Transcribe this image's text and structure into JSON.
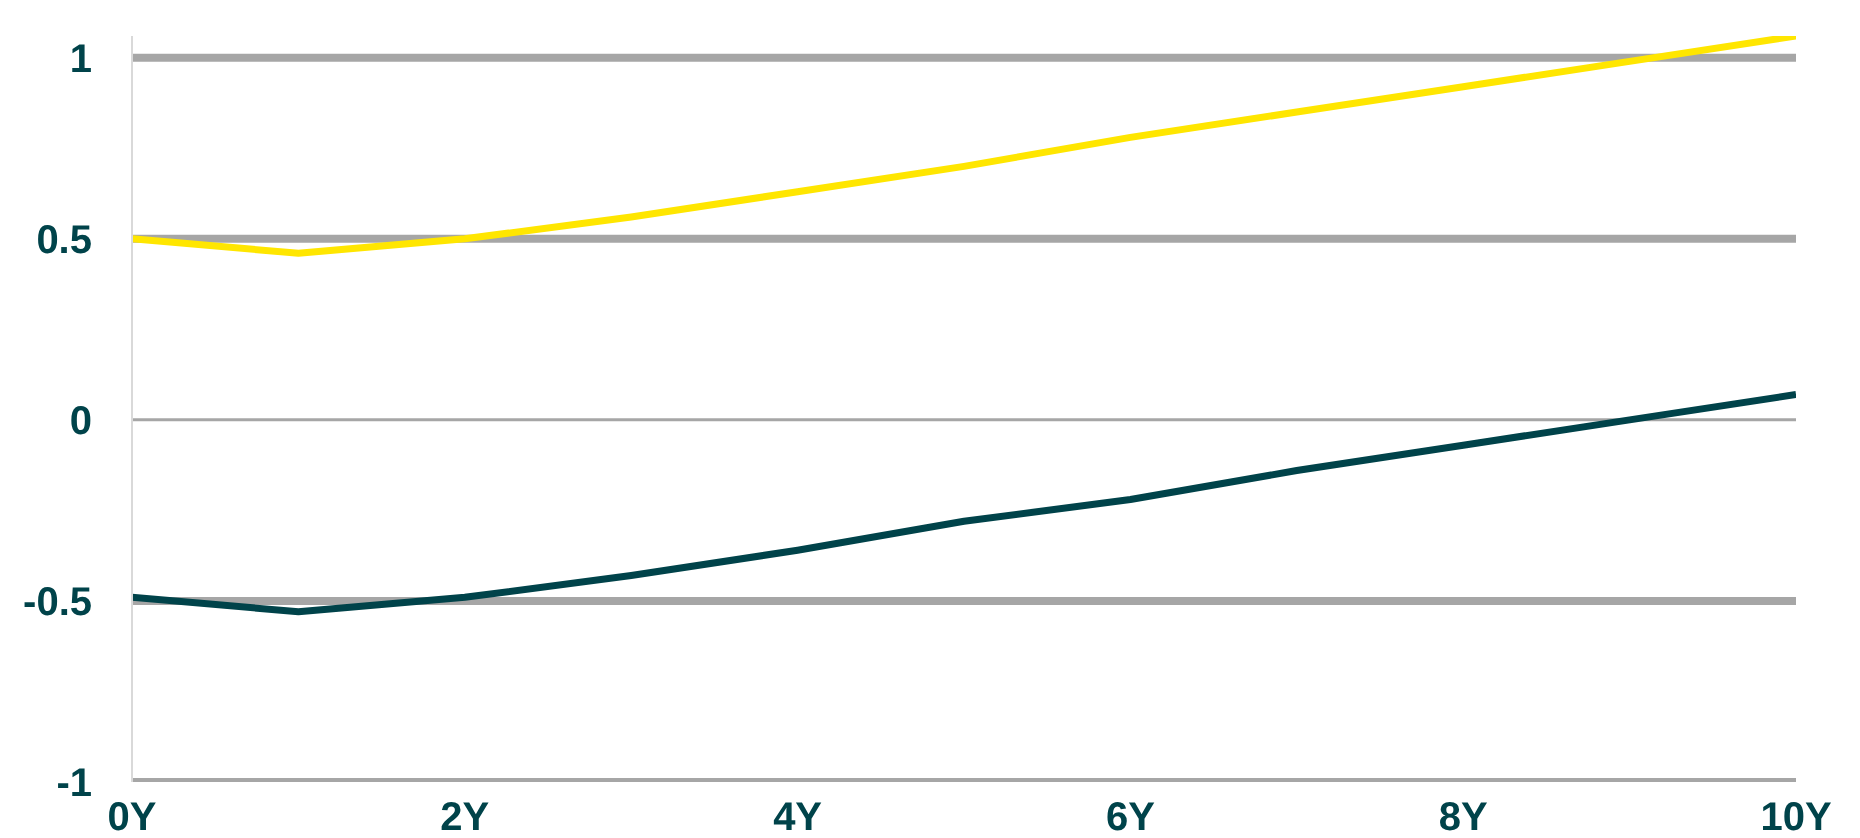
{
  "chart_data": {
    "type": "line",
    "x": [
      0,
      1,
      2,
      3,
      4,
      5,
      6,
      7,
      8,
      9,
      10
    ],
    "series": [
      {
        "color": "#ffe600",
        "values": [
          0.5,
          0.46,
          0.5,
          0.56,
          0.63,
          0.7,
          0.78,
          0.85,
          0.92,
          0.99,
          1.06
        ]
      },
      {
        "color": "#00434a",
        "values": [
          -0.49,
          -0.53,
          -0.49,
          -0.43,
          -0.36,
          -0.28,
          -0.22,
          -0.14,
          -0.07,
          0.0,
          0.07
        ]
      }
    ],
    "xlim": [
      0,
      10
    ],
    "xticks": [
      {
        "value": 0,
        "label": "0Y"
      },
      {
        "value": 2,
        "label": "2Y"
      },
      {
        "value": 4,
        "label": "4Y"
      },
      {
        "value": 6,
        "label": "6Y"
      },
      {
        "value": 8,
        "label": "8Y"
      },
      {
        "value": 10,
        "label": "10Y"
      }
    ],
    "ylim": [
      -1,
      1.06
    ],
    "yticks": [
      -1,
      -0.5,
      0,
      0.5,
      1
    ],
    "grid": "y",
    "marker": "none",
    "line_style": "solid"
  }
}
